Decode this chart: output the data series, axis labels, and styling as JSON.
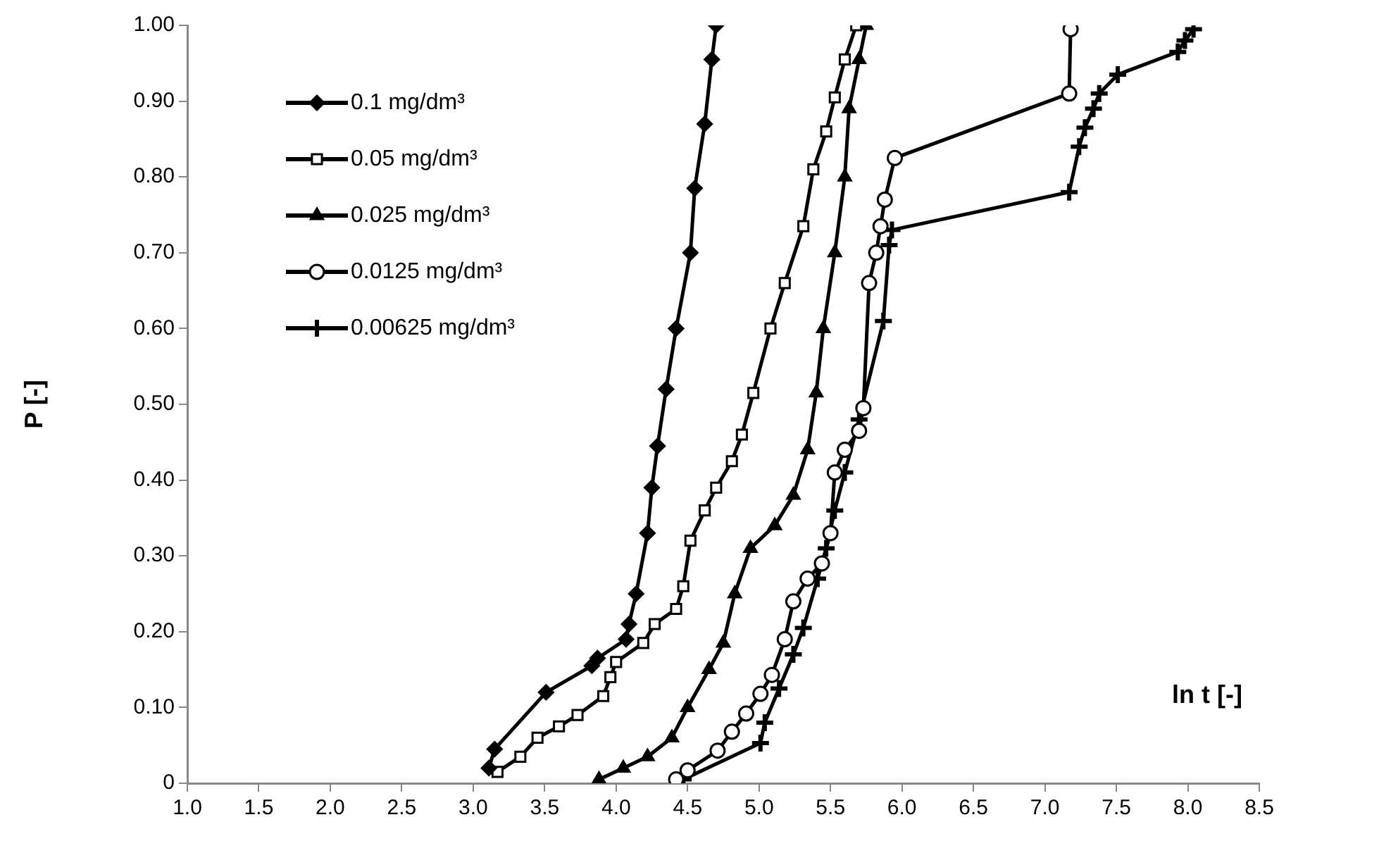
{
  "chart_data": {
    "type": "line",
    "xlabel": "ln t [-]",
    "ylabel": "P [-]",
    "xlim": [
      1,
      8.5
    ],
    "ylim": [
      0,
      1
    ],
    "xticks": [
      {
        "value": 1,
        "label": "1.0"
      },
      {
        "value": 1.5,
        "label": "1.5"
      },
      {
        "value": 2,
        "label": "2.0"
      },
      {
        "value": 2.5,
        "label": "2.5"
      },
      {
        "value": 3,
        "label": "3.0"
      },
      {
        "value": 3.5,
        "label": "3.5"
      },
      {
        "value": 4,
        "label": "4.0"
      },
      {
        "value": 4.5,
        "label": "4.5"
      },
      {
        "value": 5,
        "label": "5.0"
      },
      {
        "value": 5.5,
        "label": "5.5"
      },
      {
        "value": 6,
        "label": "6.0"
      },
      {
        "value": 6.5,
        "label": "6.5"
      },
      {
        "value": 7,
        "label": "7.0"
      },
      {
        "value": 7.5,
        "label": "7.5"
      },
      {
        "value": 8,
        "label": "8.0"
      },
      {
        "value": 8.5,
        "label": "8.5"
      }
    ],
    "yticks": [
      0,
      {
        "value": 0.1,
        "label": "0.10"
      },
      {
        "value": 0.2,
        "label": "0.20"
      },
      {
        "value": 0.3,
        "label": "0.30"
      },
      {
        "value": 0.4,
        "label": "0.40"
      },
      {
        "value": 0.5,
        "label": "0.50"
      },
      {
        "value": 0.6,
        "label": "0.60"
      },
      {
        "value": 0.7,
        "label": "0.70"
      },
      {
        "value": 0.8,
        "label": "0.80"
      },
      {
        "value": 0.9,
        "label": "0.90"
      },
      {
        "value": 1,
        "label": "1.00"
      }
    ],
    "grid": false,
    "legend": "top left",
    "line_style": "solid",
    "series": [
      {
        "name": "0.1 mg/dm³",
        "color": "#000000",
        "marker": "diamond",
        "x": [
          3.11,
          3.15,
          3.51,
          3.83,
          3.87,
          4.07,
          4.09,
          4.14,
          4.22,
          4.25,
          4.29,
          4.35,
          4.42,
          4.52,
          4.55,
          4.62,
          4.67,
          4.7
        ],
        "values": [
          0.02,
          0.045,
          0.12,
          0.155,
          0.165,
          0.19,
          0.21,
          0.25,
          0.33,
          0.39,
          0.445,
          0.52,
          0.6,
          0.7,
          0.785,
          0.87,
          0.955,
          1
        ]
      },
      {
        "name": "0.05 mg/dm³",
        "color": "#000000",
        "marker": "square",
        "x": [
          3.17,
          3.33,
          3.45,
          3.6,
          3.73,
          3.91,
          3.96,
          4.0,
          4.19,
          4.27,
          4.42,
          4.47,
          4.52,
          4.62,
          4.7,
          4.81,
          4.88,
          4.96,
          5.08,
          5.18,
          5.31,
          5.38,
          5.47,
          5.53,
          5.6,
          5.68
        ],
        "values": [
          0.015,
          0.035,
          0.06,
          0.075,
          0.09,
          0.115,
          0.14,
          0.16,
          0.185,
          0.21,
          0.23,
          0.26,
          0.32,
          0.36,
          0.39,
          0.425,
          0.46,
          0.515,
          0.6,
          0.66,
          0.735,
          0.81,
          0.86,
          0.905,
          0.955,
          1
        ]
      },
      {
        "name": "0.025 mg/dm³",
        "color": "#000000",
        "marker": "triangle",
        "x": [
          3.88,
          4.05,
          4.22,
          4.39,
          4.5,
          4.65,
          4.75,
          4.83,
          4.94,
          5.11,
          5.24,
          5.34,
          5.4,
          5.45,
          5.53,
          5.6,
          5.63,
          5.7,
          5.75
        ],
        "values": [
          0.005,
          0.02,
          0.035,
          0.06,
          0.1,
          0.15,
          0.185,
          0.25,
          0.31,
          0.34,
          0.38,
          0.44,
          0.515,
          0.6,
          0.7,
          0.8,
          0.89,
          0.955,
          1
        ]
      },
      {
        "name": "0.0125 mg/dm³",
        "color": "#000000",
        "marker": "circle",
        "x": [
          4.42,
          4.5,
          4.71,
          4.81,
          4.91,
          5.01,
          5.09,
          5.18,
          5.24,
          5.34,
          5.44,
          5.5,
          5.53,
          5.6,
          5.7,
          5.73,
          5.77,
          5.82,
          5.85,
          5.88,
          5.95,
          7.17,
          7.18
        ],
        "values": [
          0.005,
          0.017,
          0.043,
          0.068,
          0.092,
          0.118,
          0.143,
          0.19,
          0.24,
          0.27,
          0.29,
          0.33,
          0.41,
          0.44,
          0.465,
          0.495,
          0.66,
          0.7,
          0.735,
          0.77,
          0.825,
          0.91,
          0.995
        ]
      },
      {
        "name": "0.00625 mg/dm³",
        "color": "#000000",
        "marker": "cross",
        "x": [
          4.47,
          5.01,
          5.04,
          5.14,
          5.24,
          5.31,
          5.41,
          5.47,
          5.53,
          5.6,
          5.7,
          5.87,
          5.91,
          5.93,
          7.17,
          7.24,
          7.28,
          7.34,
          7.38,
          7.51,
          7.93,
          7.98,
          8.04
        ],
        "values": [
          0.005,
          0.053,
          0.08,
          0.125,
          0.17,
          0.205,
          0.27,
          0.31,
          0.36,
          0.41,
          0.48,
          0.61,
          0.71,
          0.73,
          0.78,
          0.84,
          0.865,
          0.89,
          0.91,
          0.935,
          0.965,
          0.98,
          0.995
        ]
      }
    ]
  }
}
